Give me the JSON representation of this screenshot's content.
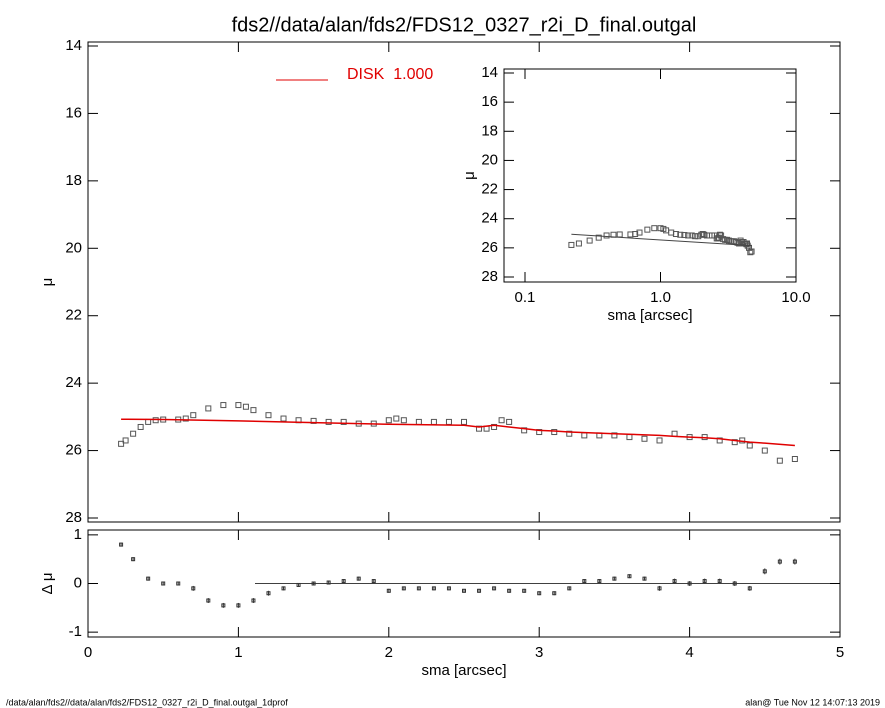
{
  "chart_data": [
    {
      "type": "scatter",
      "title": "fds2//data/alan/fds2/FDS12_0327_r2i_D_final.outgal",
      "y_label": "μ",
      "xlim": [
        0,
        5
      ],
      "xticks": [
        0,
        1,
        2,
        3,
        4,
        5
      ],
      "xtick_labels": false,
      "ylim": [
        28,
        14
      ],
      "yticks": [
        14,
        16,
        18,
        20,
        22,
        24,
        26,
        28
      ],
      "series": [
        {
          "style": "square",
          "color": "#555555",
          "x": [
            0.22,
            0.25,
            0.3,
            0.35,
            0.4,
            0.45,
            0.5,
            0.6,
            0.65,
            0.7,
            0.8,
            0.9,
            1.0,
            1.05,
            1.1,
            1.2,
            1.3,
            1.4,
            1.5,
            1.6,
            1.7,
            1.8,
            1.9,
            2.0,
            2.05,
            2.1,
            2.2,
            2.3,
            2.4,
            2.5,
            2.6,
            2.65,
            2.7,
            2.75,
            2.8,
            2.9,
            3.0,
            3.1,
            3.2,
            3.3,
            3.4,
            3.5,
            3.6,
            3.7,
            3.8,
            3.9,
            4.0,
            4.1,
            4.2,
            4.3,
            4.35,
            4.4,
            4.5,
            4.6,
            4.7
          ],
          "values": [
            25.8,
            25.7,
            25.5,
            25.3,
            25.15,
            25.1,
            25.08,
            25.08,
            25.05,
            24.95,
            24.75,
            24.65,
            24.65,
            24.7,
            24.8,
            24.95,
            25.05,
            25.1,
            25.12,
            25.15,
            25.15,
            25.2,
            25.2,
            25.1,
            25.05,
            25.1,
            25.15,
            25.15,
            25.15,
            25.15,
            25.35,
            25.35,
            25.3,
            25.1,
            25.15,
            25.4,
            25.45,
            25.45,
            25.5,
            25.55,
            25.55,
            25.55,
            25.6,
            25.65,
            25.7,
            25.5,
            25.6,
            25.6,
            25.7,
            25.75,
            25.7,
            25.85,
            26.0,
            26.3,
            26.25
          ]
        },
        {
          "style": "line",
          "name": "DISK  1.000",
          "color": "#e00000",
          "x": [
            0.22,
            0.5,
            1.0,
            1.5,
            2.0,
            2.5,
            2.6,
            2.7,
            2.8,
            2.9,
            3.0,
            3.1,
            3.2,
            3.5,
            3.8,
            3.9,
            4.0,
            4.1,
            4.2,
            4.3,
            4.4,
            4.5,
            4.7
          ],
          "values": [
            25.07,
            25.08,
            25.12,
            25.17,
            25.22,
            25.25,
            25.3,
            25.25,
            25.3,
            25.35,
            25.4,
            25.42,
            25.45,
            25.5,
            25.55,
            25.58,
            25.6,
            25.62,
            25.65,
            25.7,
            25.75,
            25.78,
            25.85
          ]
        }
      ]
    },
    {
      "type": "scatter",
      "x_label": "sma [arcsec]",
      "y_label": "μ",
      "xscale": "log",
      "xlim": [
        0.07,
        10
      ],
      "xticks": [
        {
          "value": 0.1,
          "label": "0.1"
        },
        {
          "value": 1,
          "label": "1.0"
        },
        {
          "value": 10,
          "label": "10.0"
        }
      ],
      "ylim": [
        28,
        14
      ],
      "yticks": [
        14,
        16,
        18,
        20,
        22,
        24,
        26,
        28
      ],
      "series": [
        {
          "style": "square",
          "color": "#555555",
          "x": [
            0.22,
            0.25,
            0.3,
            0.35,
            0.4,
            0.45,
            0.5,
            0.6,
            0.65,
            0.7,
            0.8,
            0.9,
            1.0,
            1.05,
            1.1,
            1.2,
            1.3,
            1.4,
            1.5,
            1.6,
            1.7,
            1.8,
            1.9,
            2.0,
            2.05,
            2.1,
            2.2,
            2.3,
            2.4,
            2.5,
            2.6,
            2.65,
            2.7,
            2.75,
            2.8,
            2.9,
            3.0,
            3.1,
            3.2,
            3.3,
            3.4,
            3.5,
            3.6,
            3.7,
            3.8,
            3.9,
            4.0,
            4.1,
            4.2,
            4.3,
            4.35,
            4.4,
            4.5,
            4.6,
            4.7
          ],
          "values": [
            25.8,
            25.7,
            25.5,
            25.3,
            25.15,
            25.1,
            25.08,
            25.08,
            25.05,
            24.95,
            24.75,
            24.65,
            24.65,
            24.7,
            24.8,
            24.95,
            25.05,
            25.1,
            25.12,
            25.15,
            25.15,
            25.2,
            25.2,
            25.1,
            25.05,
            25.1,
            25.15,
            25.15,
            25.15,
            25.15,
            25.35,
            25.35,
            25.3,
            25.1,
            25.15,
            25.4,
            25.45,
            25.45,
            25.5,
            25.55,
            25.55,
            25.55,
            25.6,
            25.65,
            25.7,
            25.5,
            25.6,
            25.6,
            25.7,
            25.75,
            25.7,
            25.85,
            26.0,
            26.3,
            26.25
          ]
        },
        {
          "style": "line",
          "color": "#444444",
          "x": [
            0.22,
            4.7
          ],
          "values": [
            25.07,
            25.85
          ]
        }
      ]
    },
    {
      "type": "scatter",
      "x_label": "sma [arcsec]",
      "y_label": "Δ μ",
      "xlim": [
        0,
        5
      ],
      "xticks": [
        0,
        1,
        2,
        3,
        4,
        5
      ],
      "ylim": [
        -1.1,
        1.1
      ],
      "yticks": [
        -1,
        0,
        1
      ],
      "series": [
        {
          "style": "errorbar",
          "color": "#333333",
          "x": [
            0.22,
            0.3,
            0.4,
            0.5,
            0.6,
            0.7,
            0.8,
            0.9,
            1.0,
            1.1,
            1.2,
            1.3,
            1.4,
            1.5,
            1.6,
            1.7,
            1.8,
            1.9,
            2.0,
            2.1,
            2.2,
            2.3,
            2.4,
            2.5,
            2.6,
            2.7,
            2.8,
            2.9,
            3.0,
            3.1,
            3.2,
            3.3,
            3.4,
            3.5,
            3.6,
            3.7,
            3.8,
            3.9,
            4.0,
            4.1,
            4.2,
            4.3,
            4.4,
            4.5,
            4.6,
            4.7
          ],
          "values": [
            0.8,
            0.5,
            0.1,
            0.0,
            0.0,
            -0.1,
            -0.35,
            -0.45,
            -0.45,
            -0.35,
            -0.2,
            -0.1,
            -0.03,
            0.0,
            0.02,
            0.05,
            0.1,
            0.05,
            -0.15,
            -0.1,
            -0.1,
            -0.1,
            -0.1,
            -0.15,
            -0.15,
            -0.1,
            -0.15,
            -0.15,
            -0.2,
            -0.2,
            -0.1,
            0.05,
            0.05,
            0.1,
            0.15,
            0.1,
            -0.1,
            0.05,
            0.0,
            0.05,
            0.05,
            0.0,
            -0.1,
            0.25,
            0.45,
            0.45
          ],
          "errors": [
            0.04,
            0.04,
            0.04,
            0.04,
            0.04,
            0.05,
            0.05,
            0.05,
            0.05,
            0.05,
            0.05,
            0.04,
            0.04,
            0.04,
            0.04,
            0.04,
            0.04,
            0.04,
            0.04,
            0.04,
            0.04,
            0.04,
            0.04,
            0.04,
            0.04,
            0.04,
            0.04,
            0.04,
            0.04,
            0.04,
            0.04,
            0.04,
            0.04,
            0.04,
            0.04,
            0.04,
            0.05,
            0.05,
            0.05,
            0.05,
            0.05,
            0.05,
            0.05,
            0.06,
            0.06,
            0.06
          ]
        }
      ]
    }
  ],
  "footer_left": "/data/alan/fds2//data/alan/fds2/FDS12_0327_r2i_D_final.outgal_1dprof",
  "footer_right": "alan@  Tue Nov 12 14:07:13 2019"
}
